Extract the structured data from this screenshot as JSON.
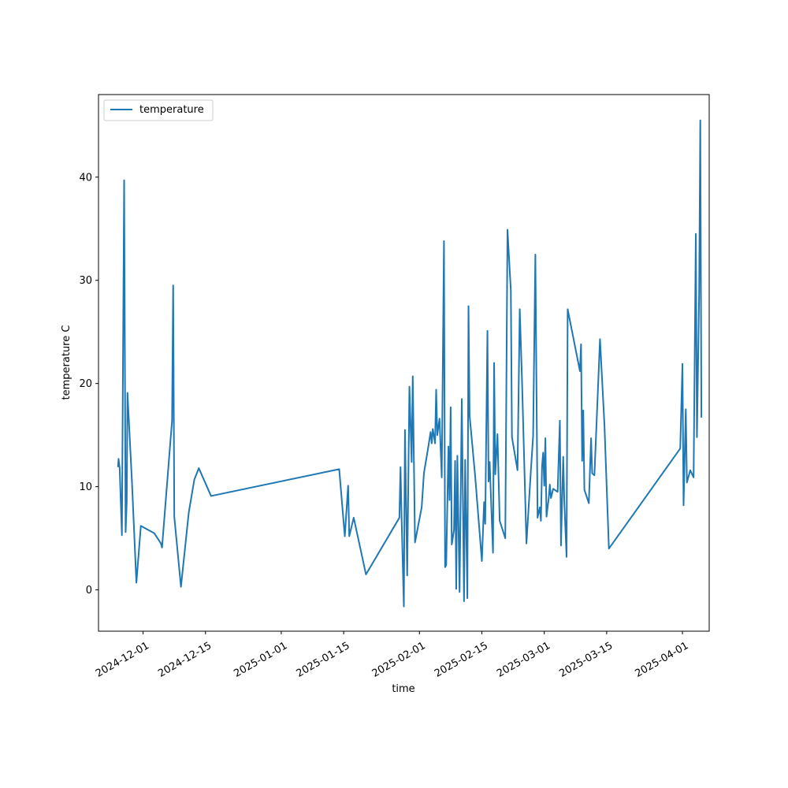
{
  "chart_data": {
    "type": "line",
    "title": "",
    "xlabel": "time",
    "ylabel": "temperature C",
    "legend": {
      "position": "top-left",
      "entries": [
        "temperature"
      ]
    },
    "grid": false,
    "xlim": [
      "2024-11-21",
      "2025-04-07"
    ],
    "ylim": [
      -4,
      48
    ],
    "yticks": [
      0,
      10,
      20,
      30,
      40
    ],
    "xticks": [
      "2024-12-01",
      "2024-12-15",
      "2025-01-01",
      "2025-01-15",
      "2025-02-01",
      "2025-02-15",
      "2025-03-01",
      "2025-03-15",
      "2025-04-01"
    ],
    "colors": {
      "series": "#1f77b4",
      "axes": "#000000"
    },
    "series": [
      {
        "name": "temperature",
        "points": [
          [
            "2024-11-25T09:00",
            11.9
          ],
          [
            "2024-11-25T12:00",
            12.7
          ],
          [
            "2024-11-25T18:00",
            11.8
          ],
          [
            "2024-11-26T06:00",
            5.3
          ],
          [
            "2024-11-26T18:00",
            39.7
          ],
          [
            "2024-11-27T02:00",
            5.6
          ],
          [
            "2024-11-27T08:00",
            8.6
          ],
          [
            "2024-11-27T12:00",
            19.1
          ],
          [
            "2024-11-28T12:00",
            10.5
          ],
          [
            "2024-11-29T12:00",
            0.7
          ],
          [
            "2024-11-30T12:00",
            6.2
          ],
          [
            "2024-12-03T12:00",
            5.5
          ],
          [
            "2024-12-05T00:00",
            4.5
          ],
          [
            "2024-12-05T06:00",
            4.1
          ],
          [
            "2024-12-07T12:00",
            16.4
          ],
          [
            "2024-12-07T18:00",
            29.5
          ],
          [
            "2024-12-08T00:00",
            7.1
          ],
          [
            "2024-12-09T12:00",
            0.3
          ],
          [
            "2024-12-11T06:00",
            7.5
          ],
          [
            "2024-12-12T12:00",
            10.7
          ],
          [
            "2024-12-13T12:00",
            11.8
          ],
          [
            "2024-12-16T06:00",
            9.1
          ],
          [
            "2025-01-14T00:00",
            11.7
          ],
          [
            "2025-01-15T06:00",
            5.2
          ],
          [
            "2025-01-16T00:00",
            10.1
          ],
          [
            "2025-01-16T06:00",
            5.2
          ],
          [
            "2025-01-17T06:00",
            7.0
          ],
          [
            "2025-01-20T00:00",
            1.5
          ],
          [
            "2025-01-27T12:00",
            7.0
          ],
          [
            "2025-01-27T18:00",
            11.9
          ],
          [
            "2025-01-28T00:00",
            6.9
          ],
          [
            "2025-01-28T12:00",
            -1.6
          ],
          [
            "2025-01-28T18:00",
            15.5
          ],
          [
            "2025-01-29T06:00",
            1.4
          ],
          [
            "2025-01-29T18:00",
            19.7
          ],
          [
            "2025-01-30T06:00",
            12.4
          ],
          [
            "2025-01-30T12:00",
            20.7
          ],
          [
            "2025-01-31T00:00",
            4.6
          ],
          [
            "2025-02-01T12:00",
            8.0
          ],
          [
            "2025-02-02T00:00",
            11.3
          ],
          [
            "2025-02-03T00:00",
            13.9
          ],
          [
            "2025-02-03T12:00",
            15.3
          ],
          [
            "2025-02-03T18:00",
            14.2
          ],
          [
            "2025-02-04T00:00",
            15.6
          ],
          [
            "2025-02-04T12:00",
            14.2
          ],
          [
            "2025-02-04T18:00",
            19.4
          ],
          [
            "2025-02-05T00:00",
            15.0
          ],
          [
            "2025-02-05T12:00",
            16.6
          ],
          [
            "2025-02-06T00:00",
            10.9
          ],
          [
            "2025-02-06T12:00",
            33.8
          ],
          [
            "2025-02-06T18:00",
            2.2
          ],
          [
            "2025-02-07T00:00",
            2.4
          ],
          [
            "2025-02-07T12:00",
            13.9
          ],
          [
            "2025-02-07T18:00",
            8.7
          ],
          [
            "2025-02-08T00:00",
            17.7
          ],
          [
            "2025-02-08T06:00",
            4.4
          ],
          [
            "2025-02-08T18:00",
            5.8
          ],
          [
            "2025-02-09T00:00",
            12.5
          ],
          [
            "2025-02-09T06:00",
            0.1
          ],
          [
            "2025-02-09T12:00",
            13.0
          ],
          [
            "2025-02-10T00:00",
            -0.2
          ],
          [
            "2025-02-10T12:00",
            18.5
          ],
          [
            "2025-02-11T00:00",
            -1.1
          ],
          [
            "2025-02-11T06:00",
            12.6
          ],
          [
            "2025-02-11T18:00",
            -0.8
          ],
          [
            "2025-02-12T00:00",
            27.5
          ],
          [
            "2025-02-12T06:00",
            16.9
          ],
          [
            "2025-02-13T12:00",
            11.0
          ],
          [
            "2025-02-15T00:00",
            2.8
          ],
          [
            "2025-02-15T12:00",
            8.5
          ],
          [
            "2025-02-15T18:00",
            6.4
          ],
          [
            "2025-02-16T06:00",
            25.1
          ],
          [
            "2025-02-16T12:00",
            10.5
          ],
          [
            "2025-02-16T18:00",
            12.4
          ],
          [
            "2025-02-17T12:00",
            3.6
          ],
          [
            "2025-02-17T18:00",
            22.0
          ],
          [
            "2025-02-18T00:00",
            11.2
          ],
          [
            "2025-02-18T12:00",
            15.1
          ],
          [
            "2025-02-19T00:00",
            6.7
          ],
          [
            "2025-02-20T06:00",
            5.0
          ],
          [
            "2025-02-20T18:00",
            34.9
          ],
          [
            "2025-02-21T12:00",
            29.0
          ],
          [
            "2025-02-21T18:00",
            14.8
          ],
          [
            "2025-02-23T00:00",
            11.6
          ],
          [
            "2025-02-23T12:00",
            27.2
          ],
          [
            "2025-02-24T00:00",
            20.4
          ],
          [
            "2025-02-25T00:00",
            4.5
          ],
          [
            "2025-02-26T00:00",
            11.6
          ],
          [
            "2025-02-26T12:00",
            14.9
          ],
          [
            "2025-02-27T00:00",
            32.5
          ],
          [
            "2025-02-27T12:00",
            7.0
          ],
          [
            "2025-02-28T00:00",
            8.0
          ],
          [
            "2025-02-28T06:00",
            6.7
          ],
          [
            "2025-02-28T12:00",
            12.0
          ],
          [
            "2025-02-28T18:00",
            13.3
          ],
          [
            "2025-03-01T00:00",
            10.1
          ],
          [
            "2025-03-01T06:00",
            14.7
          ],
          [
            "2025-03-01T12:00",
            7.1
          ],
          [
            "2025-03-02T00:00",
            8.9
          ],
          [
            "2025-03-02T06:00",
            10.2
          ],
          [
            "2025-03-02T12:00",
            8.9
          ],
          [
            "2025-03-03T00:00",
            9.8
          ],
          [
            "2025-03-04T00:00",
            9.5
          ],
          [
            "2025-03-04T12:00",
            16.4
          ],
          [
            "2025-03-04T18:00",
            4.3
          ],
          [
            "2025-03-05T06:00",
            12.9
          ],
          [
            "2025-03-05T12:00",
            8.5
          ],
          [
            "2025-03-06T00:00",
            3.2
          ],
          [
            "2025-03-06T06:00",
            27.2
          ],
          [
            "2025-03-09T00:00",
            21.2
          ],
          [
            "2025-03-09T06:00",
            23.8
          ],
          [
            "2025-03-09T12:00",
            12.5
          ],
          [
            "2025-03-09T18:00",
            17.4
          ],
          [
            "2025-03-10T00:00",
            9.7
          ],
          [
            "2025-03-11T00:00",
            8.4
          ],
          [
            "2025-03-11T12:00",
            14.7
          ],
          [
            "2025-03-11T18:00",
            11.3
          ],
          [
            "2025-03-12T06:00",
            11.1
          ],
          [
            "2025-03-13T12:00",
            24.3
          ],
          [
            "2025-03-14T12:00",
            16.0
          ],
          [
            "2025-03-15T12:00",
            4.0
          ],
          [
            "2025-03-31T12:00",
            13.7
          ],
          [
            "2025-04-01T00:00",
            21.9
          ],
          [
            "2025-04-01T06:00",
            8.2
          ],
          [
            "2025-04-01T18:00",
            17.5
          ],
          [
            "2025-04-02T00:00",
            10.4
          ],
          [
            "2025-04-02T18:00",
            11.6
          ],
          [
            "2025-04-03T12:00",
            10.9
          ],
          [
            "2025-04-04T00:00",
            34.5
          ],
          [
            "2025-04-04T06:00",
            14.8
          ],
          [
            "2025-04-04T18:00",
            29.0
          ],
          [
            "2025-04-05T00:00",
            45.5
          ],
          [
            "2025-04-05T06:00",
            16.7
          ]
        ]
      }
    ]
  }
}
